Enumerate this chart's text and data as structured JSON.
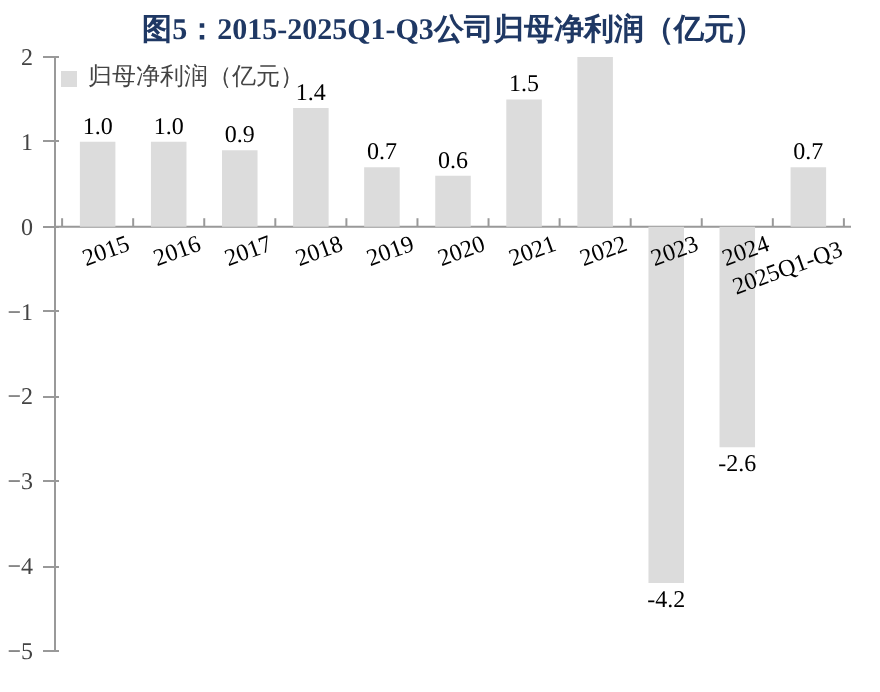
{
  "chart_data": {
    "type": "bar",
    "title": "图5：2015-2025Q1-Q3公司归母净利润（亿元）",
    "categories": [
      "2015",
      "2016",
      "2017",
      "2018",
      "2019",
      "2020",
      "2021",
      "2022",
      "2023",
      "2024",
      "2025Q1-Q3"
    ],
    "series": [
      {
        "name": "归母净利润（亿元）",
        "color": "#dcdcdc",
        "values": [
          1.0,
          1.0,
          0.9,
          1.4,
          0.7,
          0.6,
          1.5,
          2.0,
          -4.2,
          -2.6,
          0.7
        ],
        "value_labels": [
          "1.0",
          "1.0",
          "0.9",
          "1.4",
          "0.7",
          "0.6",
          "1.5",
          null,
          "-4.2",
          "-2.6",
          "0.7"
        ]
      }
    ],
    "ylim": [
      -5,
      2
    ],
    "yticks": [
      -5,
      -4,
      -3,
      -2,
      -1,
      0,
      1,
      2
    ],
    "grid": false,
    "legend": "top"
  }
}
